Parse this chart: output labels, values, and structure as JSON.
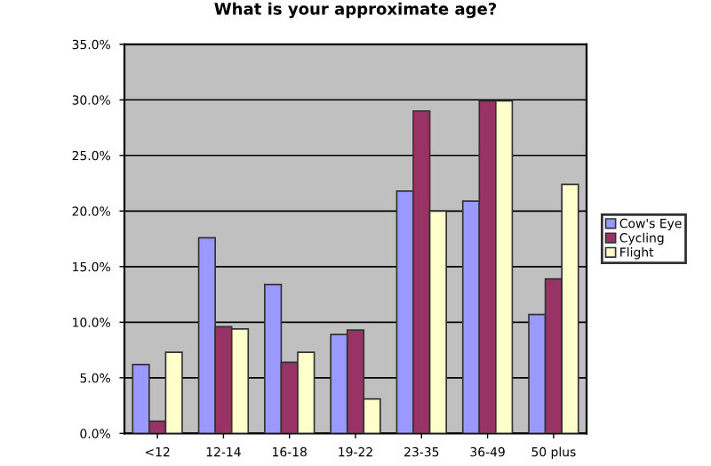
{
  "chart_data": {
    "type": "bar",
    "title": "What is your approximate age?",
    "categories": [
      "<12",
      "12-14",
      "16-18",
      "19-22",
      "23-35",
      "36-49",
      "50 plus"
    ],
    "series": [
      {
        "name": "Cow's Eye",
        "color": "#9999ff",
        "values": [
          6.2,
          17.6,
          13.4,
          8.9,
          21.8,
          20.9,
          10.7
        ]
      },
      {
        "name": "Cycling",
        "color": "#993366",
        "values": [
          1.1,
          9.6,
          6.4,
          9.3,
          29.0,
          29.9,
          13.9
        ]
      },
      {
        "name": "Flight",
        "color": "#ffffcc",
        "values": [
          7.3,
          9.4,
          7.3,
          3.1,
          20.0,
          29.9,
          22.4
        ]
      }
    ],
    "ylim": [
      0,
      35
    ],
    "yticks": [
      {
        "value": 0,
        "label": "0.0%"
      },
      {
        "value": 5,
        "label": "5.0%"
      },
      {
        "value": 10,
        "label": "10.0%"
      },
      {
        "value": 15,
        "label": "15.0%"
      },
      {
        "value": 20,
        "label": "20.0%"
      },
      {
        "value": 25,
        "label": "25.0%"
      },
      {
        "value": 30,
        "label": "30.0%"
      },
      {
        "value": 35,
        "label": "35.0%"
      }
    ],
    "grid": "y",
    "legend": "right"
  }
}
